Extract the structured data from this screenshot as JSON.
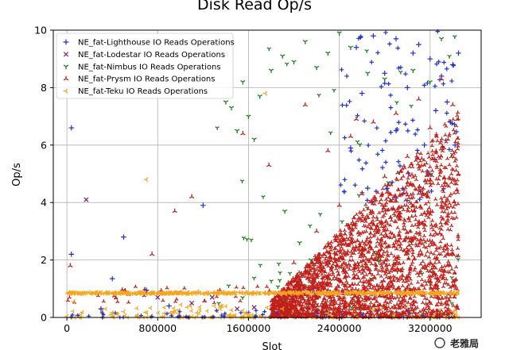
{
  "chart_data": {
    "type": "scatter",
    "title": "Disk Read Op/s",
    "xlabel": "Slot",
    "ylabel": "Op/s",
    "xlim": [
      -120000,
      3650000
    ],
    "ylim": [
      0,
      10
    ],
    "xticks": [
      0,
      800000,
      1600000,
      2400000,
      3200000
    ],
    "xtick_labels": [
      "0",
      "800000",
      "1600000",
      "2400000",
      "3200000"
    ],
    "yticks": [
      0,
      2,
      4,
      6,
      8,
      10
    ],
    "ytick_labels": [
      "0",
      "2",
      "4",
      "6",
      "8",
      "10"
    ],
    "grid": true,
    "legend_position": "top-left",
    "series": [
      {
        "name": "NE_fat-Lighthouse IO Reads Operations",
        "color": "#1f2fd0",
        "marker": "plus",
        "points": [
          [
            40000,
            6.6
          ],
          [
            40000,
            2.2
          ],
          [
            500000,
            2.8
          ],
          [
            1200000,
            3.9
          ],
          [
            400000,
            1.35
          ],
          [
            700000,
            0.95
          ],
          [
            900000,
            0.4
          ],
          [
            300000,
            0.3
          ],
          [
            2900000,
            9.7
          ],
          [
            3100000,
            9.5
          ],
          [
            3200000,
            9.0
          ],
          [
            3300000,
            8.4
          ],
          [
            3400000,
            8.8
          ],
          [
            3450000,
            9.2
          ],
          [
            3250000,
            7.2
          ],
          [
            3350000,
            7.5
          ],
          [
            3150000,
            6.0
          ],
          [
            2900000,
            6.5
          ],
          [
            2700000,
            9.8
          ],
          [
            2800000,
            8.5
          ],
          [
            2600000,
            7.8
          ],
          [
            3000000,
            8.0
          ],
          [
            3050000,
            9.2
          ],
          [
            3380000,
            6.8
          ],
          [
            3420000,
            6.0
          ],
          [
            2500000,
            5.9
          ],
          [
            2550000,
            9.4
          ],
          [
            2650000,
            4.5
          ]
        ]
      },
      {
        "name": "NE_fat-Lodestar IO Reads Operations",
        "color": "#7a1f7a",
        "marker": "x",
        "points": [
          [
            170000,
            4.1
          ],
          [
            1650000,
            0.35
          ],
          [
            1850000,
            0.15
          ],
          [
            800000,
            0.7
          ],
          [
            1500000,
            0.3
          ],
          [
            2200000,
            0.2
          ],
          [
            2600000,
            0.1
          ],
          [
            3000000,
            0.25
          ],
          [
            1100000,
            0.5
          ],
          [
            1280000,
            0.7
          ]
        ]
      },
      {
        "name": "NE_fat-Nimbus IO Reads Operations",
        "color": "#1a7f1a",
        "marker": "tri_down",
        "points": [
          [
            1400000,
            7.5
          ],
          [
            1450000,
            7.3
          ],
          [
            1500000,
            6.5
          ],
          [
            1550000,
            8.2
          ],
          [
            1650000,
            6.2
          ],
          [
            1800000,
            8.6
          ],
          [
            1900000,
            9.1
          ],
          [
            2000000,
            8.9
          ],
          [
            2100000,
            9.6
          ],
          [
            2200000,
            8.7
          ],
          [
            2300000,
            9.2
          ],
          [
            2400000,
            9.9
          ],
          [
            2500000,
            9.4
          ],
          [
            2650000,
            8.5
          ],
          [
            2800000,
            8.3
          ],
          [
            3050000,
            8.6
          ],
          [
            3200000,
            8.2
          ],
          [
            3300000,
            9.7
          ],
          [
            1920000,
            3.7
          ],
          [
            2050000,
            2.6
          ],
          [
            1700000,
            7.7
          ],
          [
            2150000,
            2.0
          ],
          [
            1600000,
            7.0
          ]
        ]
      },
      {
        "name": "NE_fat-Prysm IO Reads Operations",
        "color": "#c0201a",
        "marker": "tri_up",
        "points": [
          [
            30000,
            1.8
          ],
          [
            1100000,
            4.2
          ],
          [
            950000,
            3.7
          ],
          [
            750000,
            2.2
          ],
          [
            1780000,
            5.3
          ],
          [
            2300000,
            5.8
          ],
          [
            2500000,
            6.3
          ],
          [
            2700000,
            6.8
          ],
          [
            2900000,
            7.1
          ],
          [
            3100000,
            7.6
          ],
          [
            3300000,
            8.3
          ],
          [
            3400000,
            7.4
          ],
          [
            3200000,
            6.6
          ],
          [
            3000000,
            5.6
          ],
          [
            2800000,
            4.9
          ],
          [
            2600000,
            4.3
          ],
          [
            2400000,
            3.9
          ],
          [
            2200000,
            3.0
          ],
          [
            2000000,
            1.9
          ],
          [
            1950000,
            1.2
          ],
          [
            3450000,
            5.0
          ],
          [
            3350000,
            4.6
          ],
          [
            1550000,
            6.4
          ],
          [
            2100000,
            7.4
          ],
          [
            2550000,
            6.9
          ]
        ]
      },
      {
        "name": "NE_fat-Teku IO Reads Operations",
        "color": "#f5a61d",
        "marker": "tri_left",
        "points": [
          [
            700000,
            4.8
          ],
          [
            1750000,
            7.8
          ],
          [
            1150000,
            0.9
          ],
          [
            60000,
            0.55
          ],
          [
            500000,
            0.2
          ],
          [
            1300000,
            0.4
          ],
          [
            1600000,
            0.1
          ],
          [
            1900000,
            0.3
          ],
          [
            2300000,
            0.15
          ],
          [
            2700000,
            0.25
          ],
          [
            3100000,
            0.1
          ],
          [
            3400000,
            0.2
          ]
        ]
      }
    ]
  },
  "watermark": "老雅局"
}
